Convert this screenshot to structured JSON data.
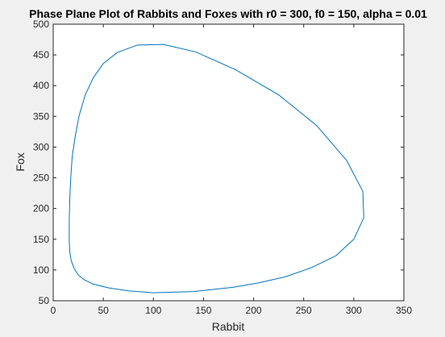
{
  "colors": {
    "figure_background": "#f0f0f0",
    "plot_background": "#ffffff",
    "axis": "#262626",
    "series": "#0072bd"
  },
  "chart_data": {
    "type": "line",
    "title": "Phase Plane Plot of Rabbits and Foxes with r0 = 300, f0 = 150, alpha = 0.01",
    "xlabel": "Rabbit",
    "ylabel": "Fox",
    "xlim": [
      0,
      350
    ],
    "ylim": [
      50,
      500
    ],
    "xticks": [
      0,
      50,
      100,
      150,
      200,
      250,
      300,
      350
    ],
    "yticks": [
      50,
      100,
      150,
      200,
      250,
      300,
      350,
      400,
      450,
      500
    ],
    "grid": false,
    "legend": "none",
    "series": [
      {
        "color": "#0072bd",
        "x": [
          300,
          310,
          309,
          293,
          263,
          225,
          182,
          142,
          110,
          84,
          64,
          50,
          40,
          32,
          26,
          22,
          19,
          17.5,
          16.5,
          16,
          16,
          16.5,
          18,
          21,
          25,
          31,
          40,
          55,
          75,
          100,
          140,
          180,
          205,
          232,
          258,
          282,
          300
        ],
        "y": [
          150,
          185,
          228,
          278,
          335,
          385,
          426,
          455,
          467,
          466,
          454,
          436,
          413,
          385,
          352,
          318,
          285,
          250,
          215,
          180,
          150,
          130,
          115,
          102,
          92,
          84,
          77,
          71,
          66,
          63,
          65,
          72,
          79,
          89,
          104,
          123,
          150
        ]
      }
    ]
  }
}
